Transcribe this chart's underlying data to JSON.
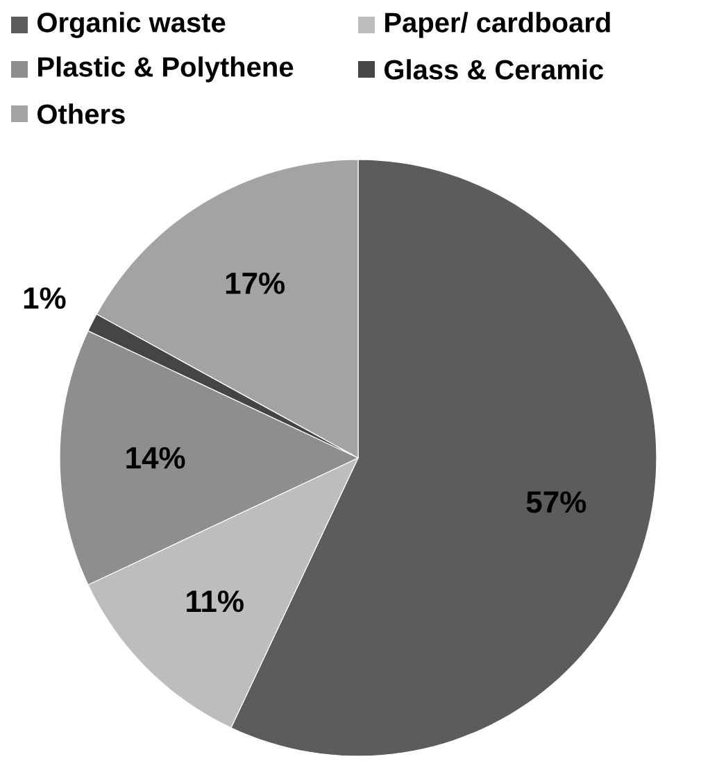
{
  "chart_data": {
    "type": "pie",
    "categories": [
      "Organic waste",
      "Paper/ cardboard",
      "Plastic & Polythene",
      "Glass & Ceramic",
      "Others"
    ],
    "values": [
      57,
      11,
      14,
      1,
      17
    ],
    "value_labels": [
      "57%",
      "11%",
      "14%",
      "1%",
      "17%"
    ],
    "colors": [
      "#5c5c5c",
      "#bdbdbd",
      "#8e8e8e",
      "#454545",
      "#a3a3a3"
    ],
    "legend": "top"
  }
}
